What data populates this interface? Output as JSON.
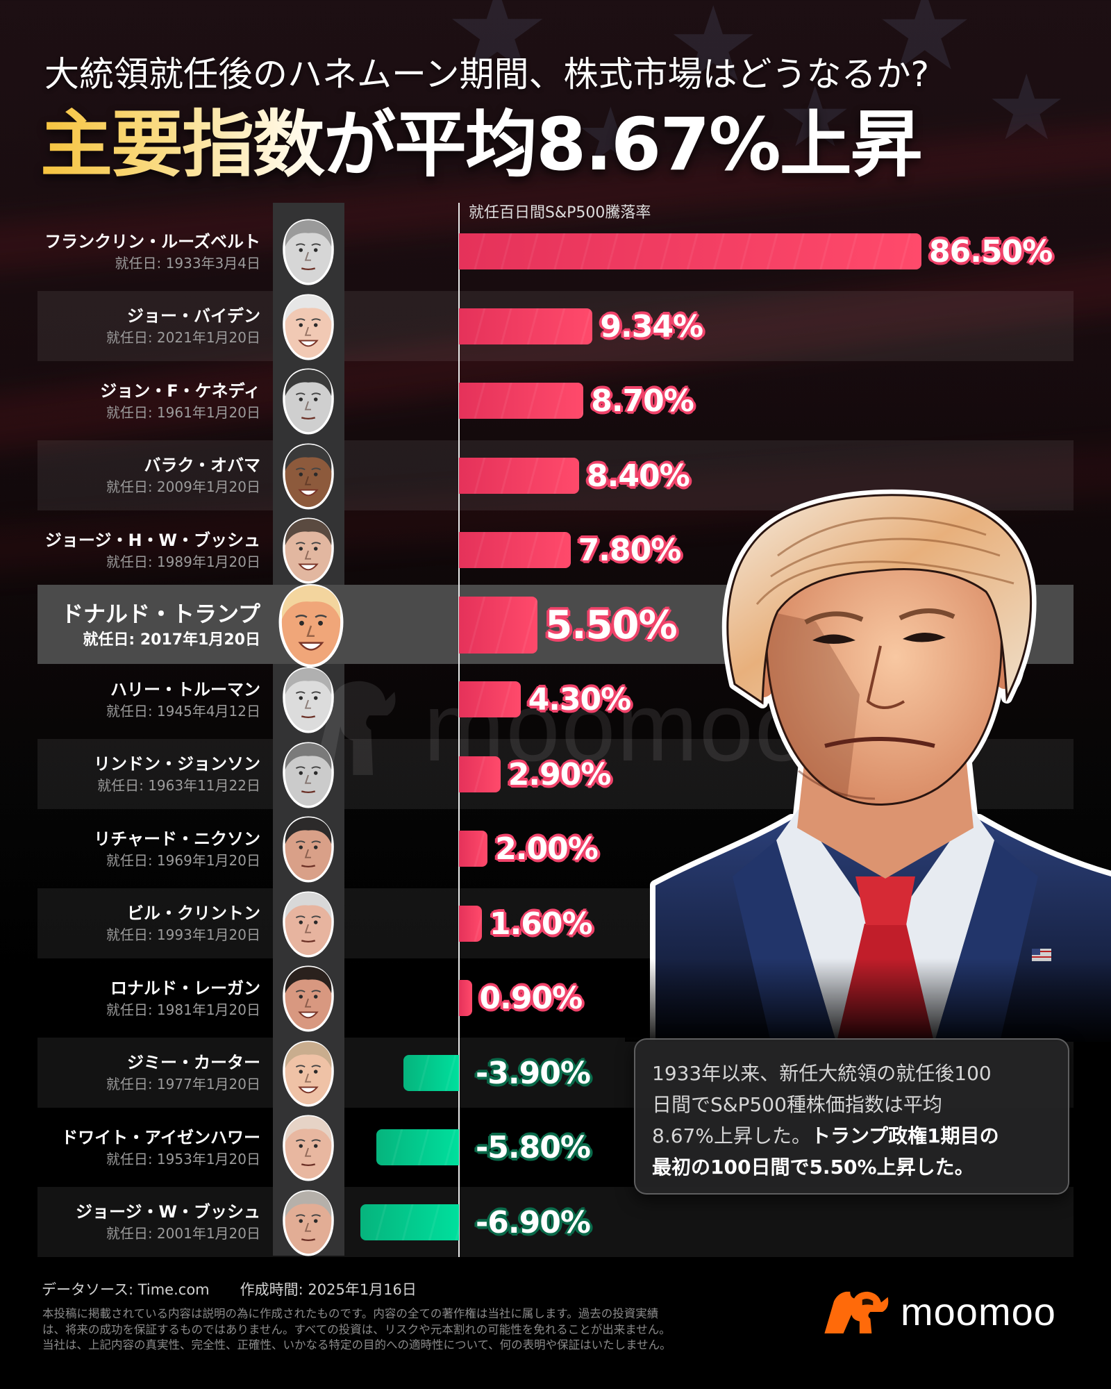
{
  "header": {
    "title": "大統領就任後のハネムーン期間、株式市場はどうなるか?",
    "headline": "主要指数が平均8.67%上昇"
  },
  "chart": {
    "axis_label": "就任百日間S&P500騰落率"
  },
  "presidents": [
    {
      "name": "フランクリン・ルーズベルト",
      "date": "就任日: 1933年3月4日",
      "value_label": "86.50%",
      "skin": "#d6d6d6",
      "hair": "#9a9a9a",
      "smile": false
    },
    {
      "name": "ジョー・バイデン",
      "date": "就任日: 2021年1月20日",
      "value_label": "9.34%",
      "skin": "#f1c9b4",
      "hair": "#e6e6e6",
      "smile": true
    },
    {
      "name": "ジョン・F・ケネディ",
      "date": "就任日: 1961年1月20日",
      "value_label": "8.70%",
      "skin": "#cfcfcf",
      "hair": "#3a3a3a",
      "smile": false
    },
    {
      "name": "バラク・オバマ",
      "date": "就任日: 2009年1月20日",
      "value_label": "8.40%",
      "skin": "#8d5a3c",
      "hair": "#3a3a3a",
      "smile": true
    },
    {
      "name": "ジョージ・H・W・ブッシュ",
      "date": "就任日: 1989年1月20日",
      "value_label": "7.80%",
      "skin": "#e2b7a0",
      "hair": "#5a4a40",
      "smile": true
    },
    {
      "name": "ドナルド・トランプ",
      "date": "就任日: 2017年1月20日",
      "value_label": "5.50%",
      "skin": "#f0a679",
      "hair": "#f3d59e",
      "smile": true,
      "highlight": true
    },
    {
      "name": "ハリー・トルーマン",
      "date": "就任日: 1945年4月12日",
      "value_label": "4.30%",
      "skin": "#dcdcdc",
      "hair": "#b0b0b0",
      "smile": false
    },
    {
      "name": "リンドン・ジョンソン",
      "date": "就任日: 1963年11月22日",
      "value_label": "2.90%",
      "skin": "#cbcbcb",
      "hair": "#7a7a7a",
      "smile": false
    },
    {
      "name": "リチャード・ニクソン",
      "date": "就任日: 1969年1月20日",
      "value_label": "2.00%",
      "skin": "#d9a088",
      "hair": "#2c2a2a",
      "smile": false
    },
    {
      "name": "ビル・クリントン",
      "date": "就任日: 1993年1月20日",
      "value_label": "1.60%",
      "skin": "#e7b49f",
      "hair": "#d8d8d8",
      "smile": false
    },
    {
      "name": "ロナルド・レーガン",
      "date": "就任日: 1981年1月20日",
      "value_label": "0.90%",
      "skin": "#d89880",
      "hair": "#2a211d",
      "smile": true
    },
    {
      "name": "ジミー・カーター",
      "date": "就任日: 1977年1月20日",
      "value_label": "-3.90%",
      "skin": "#efc2a6",
      "hair": "#c9ad8e",
      "smile": true
    },
    {
      "name": "ドワイト・アイゼンハワー",
      "date": "就任日: 1953年1月20日",
      "value_label": "-5.80%",
      "skin": "#e8b7a0",
      "hair": "#e6d3c6",
      "smile": false
    },
    {
      "name": "ジョージ・W・ブッシュ",
      "date": "就任日: 2001年1月20日",
      "value_label": "-6.90%",
      "skin": "#e2ad95",
      "hair": "#b5b0aa",
      "smile": false
    }
  ],
  "callout": {
    "line1": "1933年以来、新任大統領の就任後100",
    "line2": "日間でS&P500種株価指数は平均",
    "line3_regular": "8.67%上昇した。",
    "line3_bold": "トランプ政権1期目の",
    "line4_bold": "最初の100日間で5.50%上昇した。"
  },
  "footer": {
    "source": "データソース: Time.com",
    "created": "作成時間: 2025年1月16日",
    "disclaimer": [
      "本投稿に掲載されている内容は説明の為に作成されたものです。内容の全ての著作権は当社に属します。過去の投資実績",
      "は、将来の成功を保証するものではありません。すべての投資は、リスクや元本割れの可能性を免れることが出来ません。",
      "当社は、上記内容の真実性、完全性、正確性、いかなる特定の目的への適時性について、何の表明や保証はいたしません。"
    ]
  },
  "brand": {
    "name": "moomoo",
    "watermark": "moomoo"
  },
  "colors": {
    "positive_bar": "#ff4a6b",
    "positive_outline": "#f0436a",
    "negative_bar": "#00df9d",
    "negative_outline": "#0a6a4a",
    "headline_gold": "#f6c33e",
    "brand_orange": "#ff6a0a",
    "highlight_row": "#4b4b4b"
  },
  "chart_data": {
    "type": "bar",
    "orientation": "horizontal",
    "title": "主要指数が平均8.67%上昇",
    "subtitle": "大統領就任後のハネムーン期間、株式市場はどうなるか?",
    "xlabel": "就任百日間S&P500騰落率",
    "ylabel": "",
    "categories": [
      "フランクリン・ルーズベルト",
      "ジョー・バイデン",
      "ジョン・F・ケネディ",
      "バラク・オバマ",
      "ジョージ・H・W・ブッシュ",
      "ドナルド・トランプ",
      "ハリー・トルーマン",
      "リンドン・ジョンソン",
      "リチャード・ニクソン",
      "ビル・クリントン",
      "ロナルド・レーガン",
      "ジミー・カーター",
      "ドワイト・アイゼンハワー",
      "ジョージ・W・ブッシュ"
    ],
    "values": [
      86.5,
      9.34,
      8.7,
      8.4,
      7.8,
      5.5,
      4.3,
      2.9,
      2.0,
      1.6,
      0.9,
      -3.9,
      -5.8,
      -6.9
    ],
    "unit": "%",
    "average": 8.67,
    "highlighted_category": "ドナルド・トランプ",
    "sorted": "descending",
    "grid": false,
    "legend": "none",
    "source": "Time.com"
  }
}
